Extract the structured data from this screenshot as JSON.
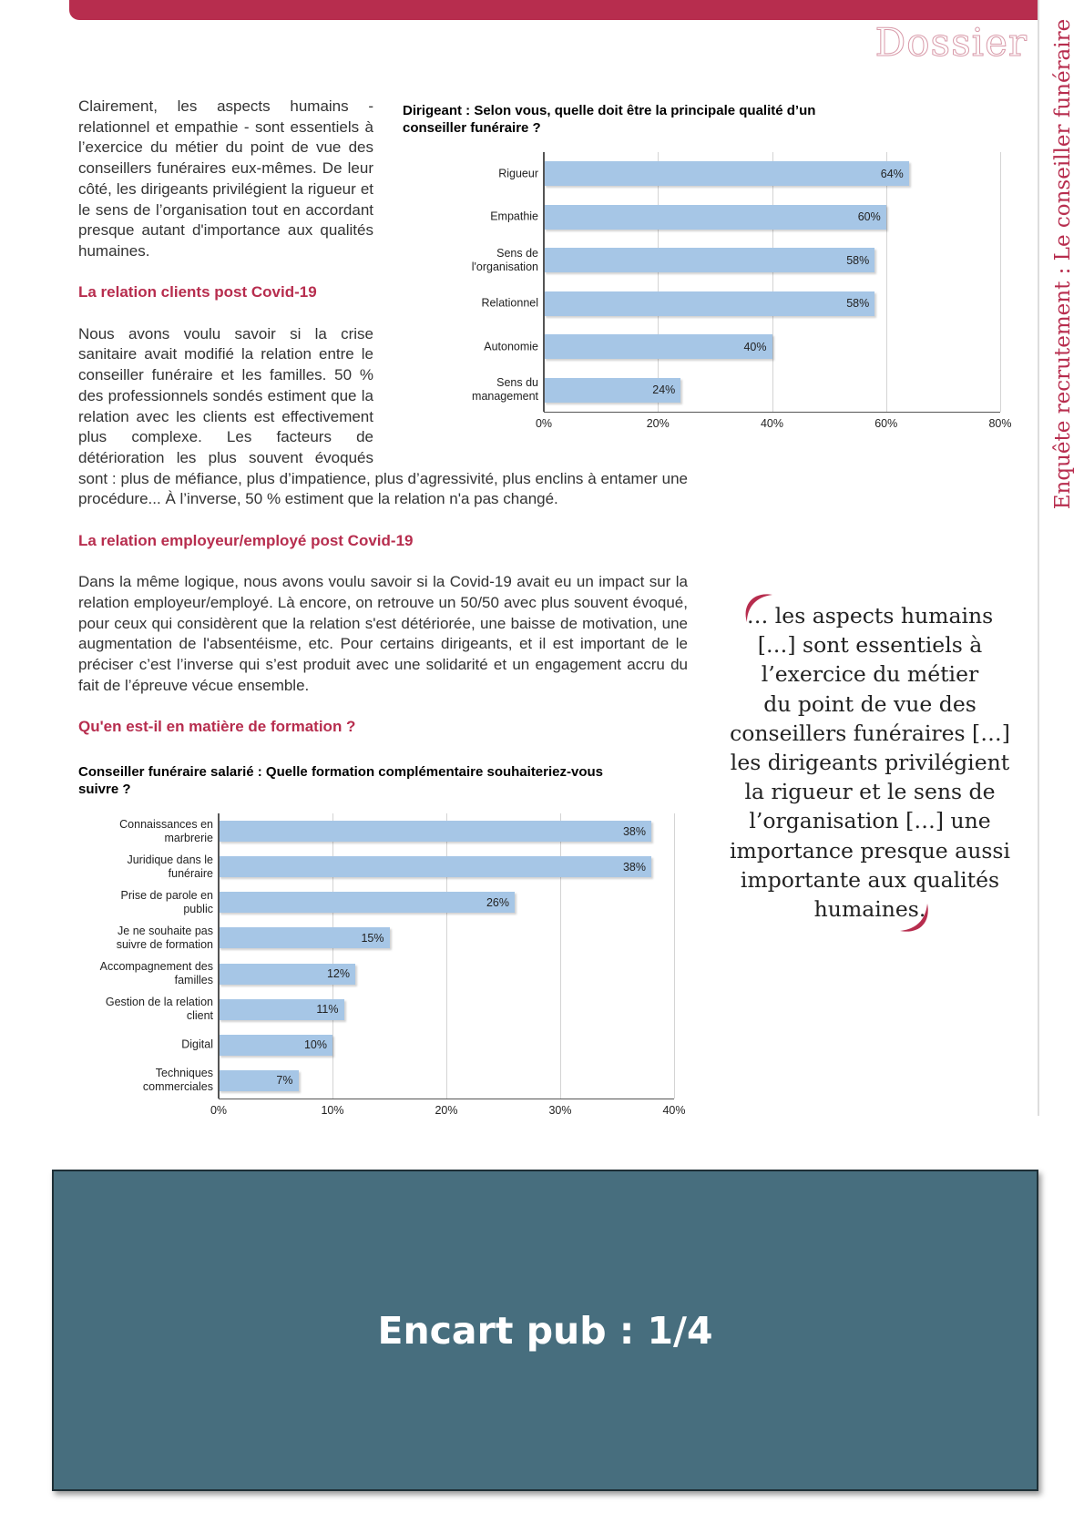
{
  "header": {
    "section": "Dossier",
    "sidebar": "Enquête recrutement : Le conseiller funéraire"
  },
  "text": {
    "p1": "Clairement, les aspects humains - relationnel et empathie - sont essentiels à l’exercice du métier du point de vue des conseillers funéraires eux-mêmes. De leur côté, les dirigeants privilégient la rigueur et le sens de l’organisation tout en accordant presque autant d'importance aux qualités humaines.",
    "h1": "La relation clients post Covid-19",
    "p2": "Nous avons voulu savoir si la crise sanitaire avait modifié la relation entre le conseiller funéraire et les familles. 50 % des professionnels sondés estiment que la relation avec les clients est effectivement plus complexe. Les facteurs de détérioration les plus souvent évoqués sont : plus de méfiance, plus d’impatience, plus d’agressivité, plus enclins à entamer une procédure...  À l’inverse, 50 % estiment que la relation n'a pas changé.",
    "h2": "La relation employeur/employé post Covid-19",
    "p3": "Dans la même logique, nous avons voulu savoir si la Covid-19 avait eu un impact sur la relation employeur/employé. Là encore, on retrouve un 50/50 avec plus souvent évoqué, pour ceux qui considèrent que la relation s'est détériorée, une baisse de motivation, une augmentation de l'absentéisme, etc. Pour certains dirigeants, et il est important de le préciser  c’est l’inverse qui s’est produit avec une solidarité et un engagement accru du fait de l’épreuve vécue ensemble.",
    "h3": "Qu'en est-il en matière de formation ?"
  },
  "chart_data": [
    {
      "type": "bar",
      "orientation": "horizontal",
      "title": "Dirigeant : Selon vous, quelle doit être la principale qualité d’un conseiller funéraire ?",
      "categories": [
        "Rigueur",
        "Empathie",
        "Sens de l'organisation",
        "Relationnel",
        "Autonomie",
        "Sens du management"
      ],
      "values": [
        64,
        60,
        58,
        58,
        40,
        24
      ],
      "value_labels": [
        "64%",
        "60%",
        "58%",
        "58%",
        "40%",
        "24%"
      ],
      "color": "#a6c6e6",
      "xlim": [
        0,
        80
      ],
      "xticks": [
        {
          "value": 0,
          "label": "0%"
        },
        {
          "value": 20,
          "label": "20%"
        },
        {
          "value": 40,
          "label": "40%"
        },
        {
          "value": 60,
          "label": "60%"
        },
        {
          "value": 80,
          "label": "80%"
        }
      ],
      "grid": true
    },
    {
      "type": "bar",
      "orientation": "horizontal",
      "title": "Conseiller funéraire salarié : Quelle formation complémentaire souhaiteriez-vous suivre ?",
      "categories": [
        "Connaissances en marbrerie",
        "Juridique dans le funéraire",
        "Prise de parole en public",
        "Je ne souhaite pas suivre de formation",
        "Accompagnement des familles",
        "Gestion de la relation client",
        "Digital",
        "Techniques commerciales"
      ],
      "values": [
        38,
        38,
        26,
        15,
        12,
        11,
        10,
        7
      ],
      "value_labels": [
        "38%",
        "38%",
        "26%",
        "15%",
        "12%",
        "11%",
        "10%",
        "7%"
      ],
      "color": "#a6c6e6",
      "xlim": [
        0,
        40
      ],
      "xticks": [
        {
          "value": 0,
          "label": "0%"
        },
        {
          "value": 10,
          "label": "10%"
        },
        {
          "value": 20,
          "label": "20%"
        },
        {
          "value": 30,
          "label": "30%"
        },
        {
          "value": 40,
          "label": "40%"
        }
      ],
      "grid": true
    }
  ],
  "quote": {
    "lines": [
      "… les aspects humains",
      "[…] sont essentiels à",
      "l’exercice du métier",
      "du point de vue des",
      "conseillers funéraires […]",
      "les dirigeants privilégient",
      "la rigueur et le sens de",
      "l’organisation […] une",
      "importance presque aussi",
      "importante aux qualités",
      "humaines."
    ]
  },
  "ad": {
    "label": "Encart pub : 1/4"
  }
}
